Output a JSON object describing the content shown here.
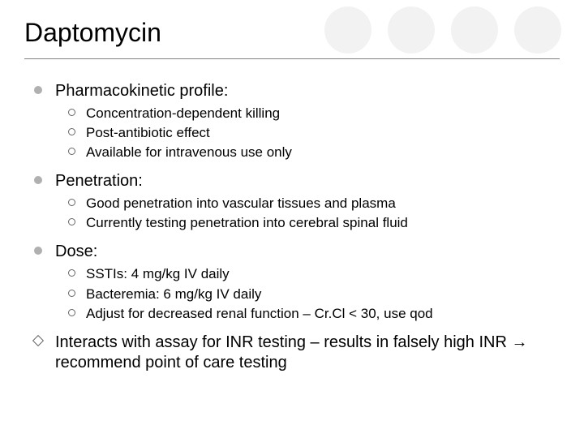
{
  "title": "Daptomycin",
  "circle_colors": [
    "#f2f2f2",
    "#f2f2f2",
    "#f2f2f2",
    "#f2f2f2"
  ],
  "sections": [
    {
      "bullet_type": "disc",
      "label": "Pharmacokinetic profile:",
      "items": [
        "Concentration-dependent killing",
        "Post-antibiotic effect",
        "Available for intravenous use only"
      ]
    },
    {
      "bullet_type": "disc",
      "label": "Penetration:",
      "items": [
        "Good penetration into vascular tissues and plasma",
        "Currently testing penetration into cerebral spinal fluid"
      ]
    },
    {
      "bullet_type": "disc",
      "label": "Dose:",
      "items": [
        "SSTIs:  4 mg/kg IV daily",
        "Bacteremia:  6 mg/kg IV daily",
        "Adjust for decreased renal function – Cr.Cl < 30, use qod"
      ]
    },
    {
      "bullet_type": "diamond",
      "label": "Interacts with assay for INR testing – results in falsely high INR → recommend point of care testing",
      "items": []
    }
  ]
}
